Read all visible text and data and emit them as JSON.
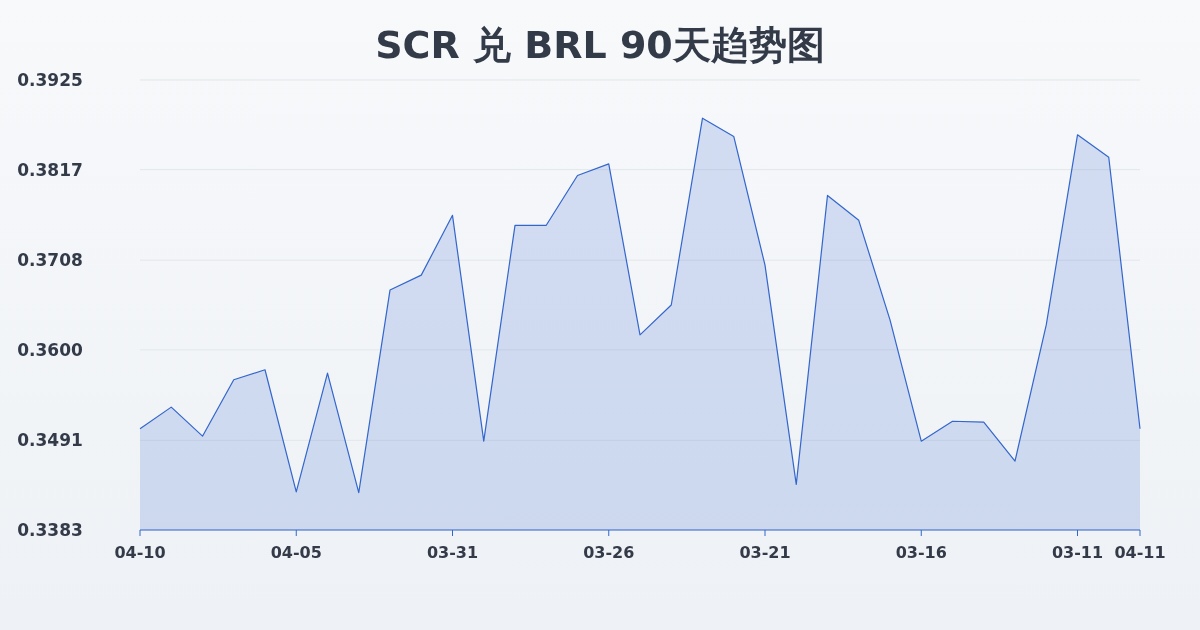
{
  "chart_data": {
    "type": "area",
    "title": "SCR 兑 BRL 90天趋势图",
    "categories": [
      "04-10",
      null,
      null,
      null,
      null,
      "04-05",
      null,
      null,
      null,
      null,
      "03-31",
      null,
      null,
      null,
      null,
      "03-26",
      null,
      null,
      null,
      null,
      "03-21",
      null,
      null,
      null,
      null,
      "03-16",
      null,
      null,
      null,
      null,
      "03-11",
      null,
      "04-11"
    ],
    "series": [
      {
        "color": "#3366cc",
        "values": [
          0.3505,
          0.3531,
          0.3496,
          0.3564,
          0.3576,
          0.3429,
          0.3572,
          0.3428,
          0.3672,
          0.369,
          0.3762,
          0.349,
          0.375,
          0.375,
          0.381,
          0.3824,
          0.3618,
          0.3654,
          0.3879,
          0.3857,
          0.3702,
          0.3438,
          0.3786,
          0.3756,
          0.3636,
          0.349,
          0.3514,
          0.3513,
          0.3466,
          0.363,
          0.3859,
          0.3832,
          0.3505
        ]
      }
    ],
    "ylim": [
      0.3383,
      0.3925
    ],
    "yticks": [
      0.3383,
      0.3491,
      {
        "value": 0.36,
        "label": "0.3600"
      },
      0.3708,
      0.3817,
      0.3925
    ],
    "grid": "y"
  }
}
